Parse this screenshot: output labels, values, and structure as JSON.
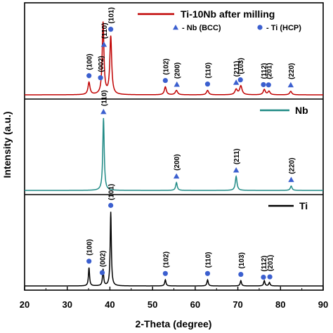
{
  "chart_data": {
    "type": "line",
    "xlabel": "2-Theta (degree)",
    "ylabel": "Intensity (a.u.)",
    "xlim": [
      20,
      90
    ],
    "x_ticks": [
      20,
      30,
      40,
      50,
      60,
      70,
      80,
      90
    ],
    "y_ticks_shown": false,
    "legend_markers": [
      {
        "symbol": "triangle",
        "label": "- Nb (BCC)",
        "color": "#3b5fcf"
      },
      {
        "symbol": "circle",
        "label": "- Ti (HCP)",
        "color": "#3b5fcf"
      }
    ],
    "panels": [
      {
        "name": "Ti-10Nb after milling",
        "color": "#c00000",
        "legend_position": "top-right",
        "peaks": [
          {
            "x": 35.1,
            "height": 0.14,
            "width": 0.28
          },
          {
            "x": 38.4,
            "height": 0.82,
            "width": 0.24
          },
          {
            "x": 40.2,
            "height": 0.66,
            "width": 0.26
          },
          {
            "x": 53.0,
            "height": 0.09,
            "width": 0.28
          },
          {
            "x": 55.6,
            "height": 0.05,
            "width": 0.32
          },
          {
            "x": 62.9,
            "height": 0.05,
            "width": 0.3
          },
          {
            "x": 69.6,
            "height": 0.06,
            "width": 0.34
          },
          {
            "x": 70.7,
            "height": 0.1,
            "width": 0.34
          },
          {
            "x": 76.2,
            "height": 0.06,
            "width": 0.3
          },
          {
            "x": 77.3,
            "height": 0.04,
            "width": 0.3
          },
          {
            "x": 82.4,
            "height": 0.04,
            "width": 0.3
          }
        ],
        "annotations": [
          {
            "x": 35.1,
            "label": "(100)",
            "marker": "circle"
          },
          {
            "x": 37.8,
            "label": "(002)",
            "marker": "circle"
          },
          {
            "x": 38.6,
            "label": "(110)",
            "marker": "triangle"
          },
          {
            "x": 40.2,
            "label": "(101)",
            "marker": "circle"
          },
          {
            "x": 53.0,
            "label": "(102)",
            "marker": "circle"
          },
          {
            "x": 55.7,
            "label": "(200)",
            "marker": "triangle"
          },
          {
            "x": 62.9,
            "label": "(110)",
            "marker": "circle"
          },
          {
            "x": 69.6,
            "label": "(211)",
            "marker": "triangle"
          },
          {
            "x": 70.6,
            "label": "(103)",
            "marker": "circle"
          },
          {
            "x": 76.0,
            "label": "(112)",
            "marker": "circle"
          },
          {
            "x": 77.2,
            "label": "(201)",
            "marker": "circle"
          },
          {
            "x": 82.4,
            "label": "(220)",
            "marker": "triangle"
          }
        ]
      },
      {
        "name": "Nb",
        "color": "#1f8a85",
        "legend_position": "top-right",
        "peaks": [
          {
            "x": 38.5,
            "height": 0.83,
            "width": 0.2
          },
          {
            "x": 55.6,
            "height": 0.09,
            "width": 0.22
          },
          {
            "x": 69.6,
            "height": 0.16,
            "width": 0.24
          },
          {
            "x": 82.5,
            "height": 0.05,
            "width": 0.24
          }
        ],
        "annotations": [
          {
            "x": 38.5,
            "label": "(110)",
            "marker": "triangle"
          },
          {
            "x": 55.6,
            "label": "(200)",
            "marker": "triangle"
          },
          {
            "x": 69.6,
            "label": "(211)",
            "marker": "triangle"
          },
          {
            "x": 82.5,
            "label": "(220)",
            "marker": "triangle"
          }
        ]
      },
      {
        "name": "Ti",
        "color": "#000000",
        "legend_position": "top-right",
        "peaks": [
          {
            "x": 35.1,
            "height": 0.21,
            "width": 0.16
          },
          {
            "x": 38.4,
            "height": 0.19,
            "width": 0.16
          },
          {
            "x": 40.2,
            "height": 0.85,
            "width": 0.16
          },
          {
            "x": 53.0,
            "height": 0.07,
            "width": 0.18
          },
          {
            "x": 62.9,
            "height": 0.07,
            "width": 0.18
          },
          {
            "x": 70.7,
            "height": 0.06,
            "width": 0.18
          },
          {
            "x": 76.2,
            "height": 0.06,
            "width": 0.18
          },
          {
            "x": 77.4,
            "height": 0.04,
            "width": 0.18
          }
        ],
        "annotations": [
          {
            "x": 35.1,
            "label": "(100)",
            "marker": "circle"
          },
          {
            "x": 38.2,
            "label": "(002)",
            "marker": "circle"
          },
          {
            "x": 40.2,
            "label": "(101)",
            "marker": "circle"
          },
          {
            "x": 53.0,
            "label": "(102)",
            "marker": "circle"
          },
          {
            "x": 62.9,
            "label": "(110)",
            "marker": "circle"
          },
          {
            "x": 70.7,
            "label": "(103)",
            "marker": "circle"
          },
          {
            "x": 76.0,
            "label": "(112)",
            "marker": "circle"
          },
          {
            "x": 77.5,
            "label": "(201)",
            "marker": "circle"
          }
        ]
      }
    ]
  }
}
